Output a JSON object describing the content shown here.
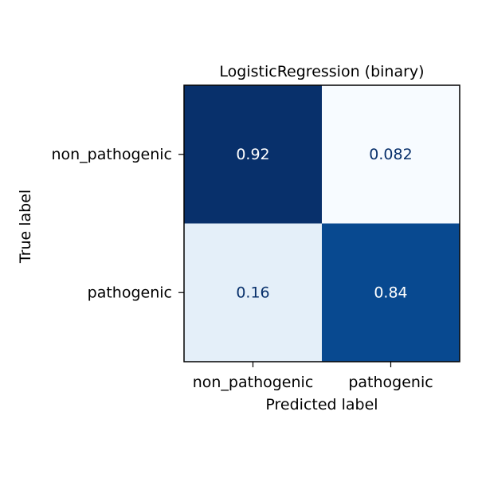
{
  "chart_data": {
    "type": "heatmap",
    "title": "LogisticRegression (binary)",
    "xlabel": "Predicted label",
    "ylabel": "True label",
    "x_categories": [
      "non_pathogenic",
      "pathogenic"
    ],
    "y_categories": [
      "non_pathogenic",
      "pathogenic"
    ],
    "values": [
      [
        0.92,
        0.082
      ],
      [
        0.16,
        0.84
      ]
    ],
    "value_labels": [
      [
        "0.92",
        "0.082"
      ],
      [
        "0.16",
        "0.84"
      ]
    ],
    "colormap": "Blues",
    "colorbar": false,
    "grid": false
  }
}
